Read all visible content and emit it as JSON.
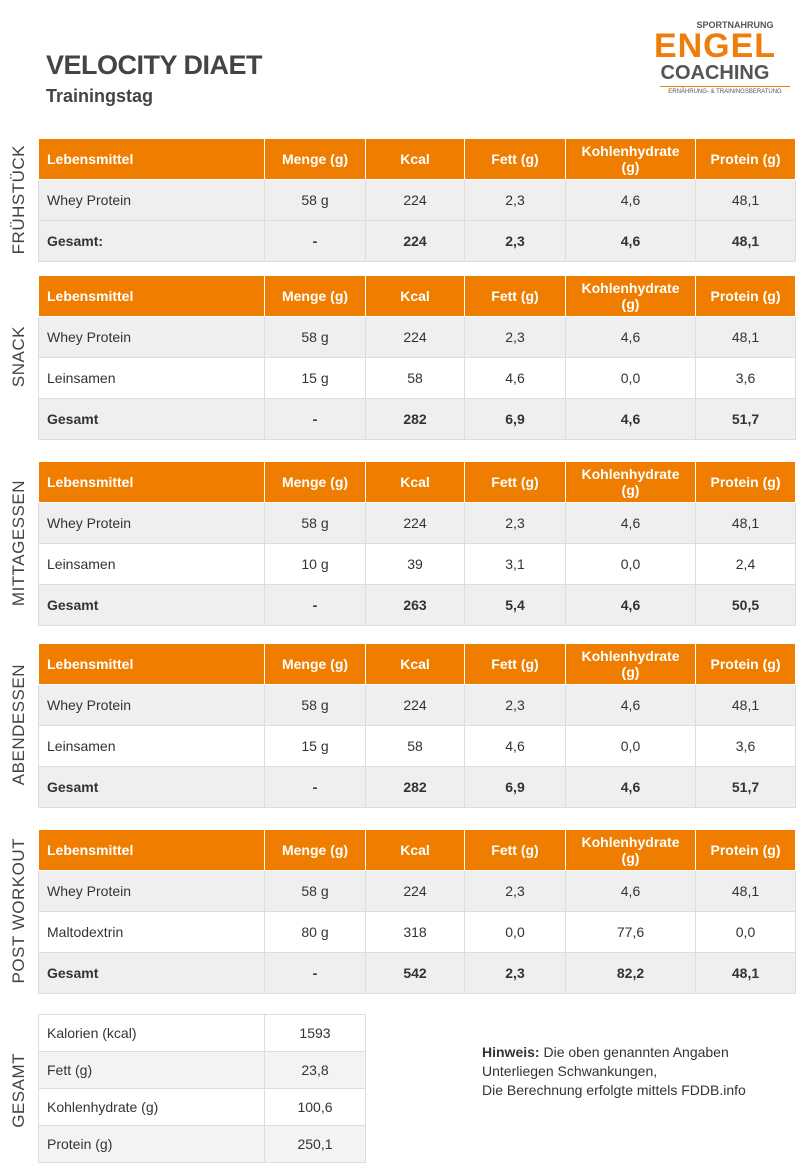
{
  "header": {
    "title": "VELOCITY DIAET",
    "subtitle": "Trainingstag"
  },
  "logo": {
    "top": "SPORTNAHRUNG",
    "line1": "ENGEL",
    "line2": "COACHING",
    "tagline": "ERNÄHRUNG- & TRAININGSBERATUNG"
  },
  "meals": [
    {
      "label": "FRÜHSTÜCK",
      "columns": [
        "Lebensmittel",
        "Menge (g)",
        "Kcal",
        "Fett (g)",
        "Kohlenhydrate (g)",
        "Protein (g)"
      ],
      "rows": [
        [
          "Whey Protein",
          "58 g",
          "224",
          "2,3",
          "4,6",
          "48,1"
        ]
      ],
      "total": [
        "Gesamt:",
        "-",
        "224",
        "2,3",
        "4,6",
        "48,1"
      ]
    },
    {
      "label": "SNACK",
      "columns": [
        "Lebensmittel",
        "Menge (g)",
        "Kcal",
        "Fett (g)",
        "Kohlenhydrate (g)",
        "Protein (g)"
      ],
      "rows": [
        [
          "Whey Protein",
          "58 g",
          "224",
          "2,3",
          "4,6",
          "48,1"
        ],
        [
          "Leinsamen",
          "15 g",
          "58",
          "4,6",
          "0,0",
          "3,6"
        ]
      ],
      "total": [
        "Gesamt",
        "-",
        "282",
        "6,9",
        "4,6",
        "51,7"
      ]
    },
    {
      "label": "MITTAGESSEN",
      "columns": [
        "Lebensmittel",
        "Menge (g)",
        "Kcal",
        "Fett (g)",
        "Kohlenhydrate (g)",
        "Protein (g)"
      ],
      "rows": [
        [
          "Whey Protein",
          "58 g",
          "224",
          "2,3",
          "4,6",
          "48,1"
        ],
        [
          "Leinsamen",
          "10 g",
          "39",
          "3,1",
          "0,0",
          "2,4"
        ]
      ],
      "total": [
        "Gesamt",
        "-",
        "263",
        "5,4",
        "4,6",
        "50,5"
      ]
    },
    {
      "label": "ABENDESSEN",
      "columns": [
        "Lebensmittel",
        "Menge (g)",
        "Kcal",
        "Fett (g)",
        "Kohlenhydrate (g)",
        "Protein (g)"
      ],
      "rows": [
        [
          "Whey Protein",
          "58 g",
          "224",
          "2,3",
          "4,6",
          "48,1"
        ],
        [
          "Leinsamen",
          "15 g",
          "58",
          "4,6",
          "0,0",
          "3,6"
        ]
      ],
      "total": [
        "Gesamt",
        "-",
        "282",
        "6,9",
        "4,6",
        "51,7"
      ]
    },
    {
      "label": "POST WORKOUT",
      "columns": [
        "Lebensmittel",
        "Menge (g)",
        "Kcal",
        "Fett (g)",
        "Kohlenhydrate (g)",
        "Protein (g)"
      ],
      "rows": [
        [
          "Whey Protein",
          "58 g",
          "224",
          "2,3",
          "4,6",
          "48,1"
        ],
        [
          "Maltodextrin",
          "80 g",
          "318",
          "0,0",
          "77,6",
          "0,0"
        ]
      ],
      "total": [
        "Gesamt",
        "-",
        "542",
        "2,3",
        "82,2",
        "48,1"
      ]
    }
  ],
  "summary": {
    "label": "GESAMT",
    "rows": [
      [
        "Kalorien (kcal)",
        "1593"
      ],
      [
        "Fett (g)",
        "23,8"
      ],
      [
        "Kohlenhydrate (g)",
        "100,6"
      ],
      [
        "Protein (g)",
        "250,1"
      ]
    ]
  },
  "note": {
    "bold": "Hinweis:",
    "lines": [
      "Die oben genannten Angaben",
      "Unterliegen Schwankungen,",
      "Die Berechnung erfolgte mittels FDDB.info"
    ]
  }
}
